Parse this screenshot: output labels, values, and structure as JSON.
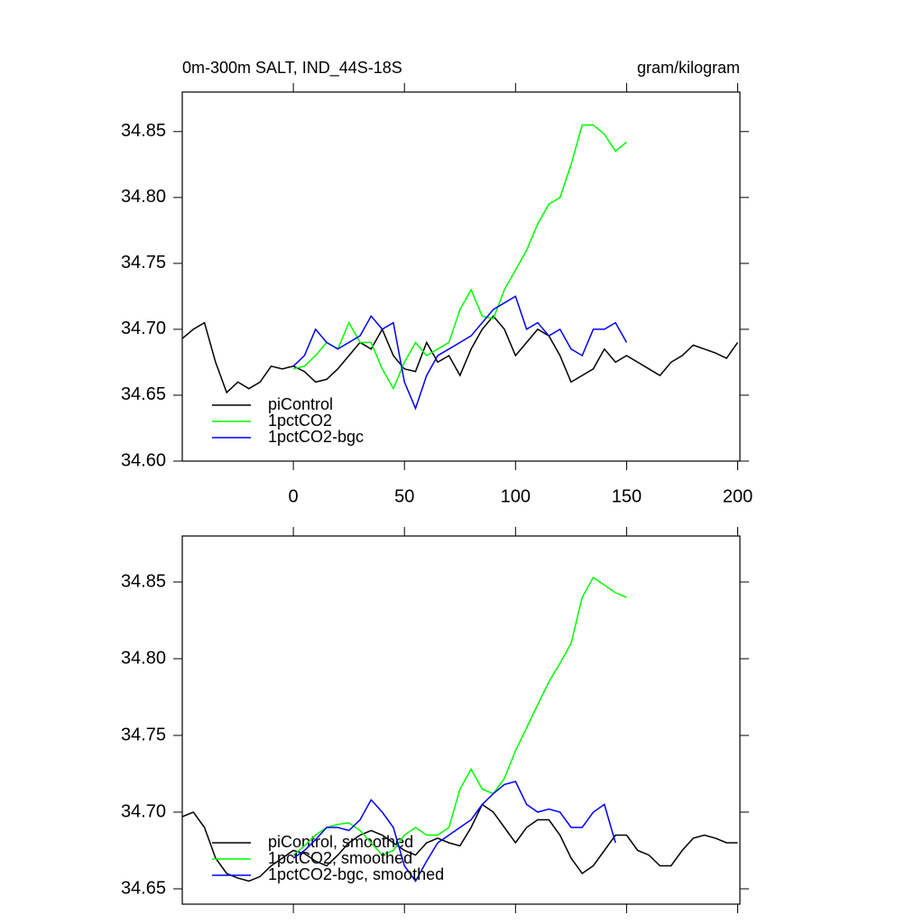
{
  "chart_data": [
    {
      "type": "line",
      "title": "0m-300m SALT, IND_44S-18S",
      "subtitle": "gram/kilogram",
      "x": [
        -50,
        -45,
        -40,
        -35,
        -30,
        -25,
        -20,
        -15,
        -10,
        -5,
        0,
        5,
        10,
        15,
        20,
        25,
        30,
        35,
        40,
        45,
        50,
        55,
        60,
        65,
        70,
        75,
        80,
        85,
        90,
        95,
        100,
        105,
        110,
        115,
        120,
        125,
        130,
        135,
        140,
        145,
        150,
        155,
        160,
        165,
        170,
        175,
        180,
        185,
        190,
        195,
        200
      ],
      "series": [
        {
          "name": "piControl",
          "color": "#000000",
          "values": [
            34.693,
            34.7,
            34.705,
            34.675,
            34.652,
            34.66,
            34.655,
            34.66,
            34.672,
            34.67,
            34.672,
            34.668,
            34.66,
            34.662,
            34.67,
            34.68,
            34.69,
            34.685,
            34.7,
            34.68,
            34.67,
            34.668,
            34.69,
            34.675,
            34.68,
            34.665,
            34.685,
            34.7,
            34.71,
            34.7,
            34.68,
            34.69,
            34.7,
            34.695,
            34.68,
            34.66,
            34.665,
            34.67,
            34.685,
            34.675,
            34.68,
            34.675,
            34.67,
            34.665,
            34.675,
            34.68,
            34.688,
            34.685,
            34.682,
            34.678,
            34.69
          ]
        },
        {
          "name": "1pctCO2",
          "color": "#00ff00",
          "values": [
            null,
            null,
            null,
            null,
            null,
            null,
            null,
            null,
            null,
            null,
            34.67,
            34.672,
            34.68,
            34.69,
            34.685,
            34.705,
            34.69,
            34.69,
            34.67,
            34.655,
            34.675,
            34.69,
            34.68,
            34.685,
            34.69,
            34.715,
            34.73,
            34.71,
            34.708,
            34.73,
            34.745,
            34.76,
            34.78,
            34.795,
            34.8,
            34.825,
            34.855,
            34.855,
            34.848,
            34.835,
            34.842,
            null,
            null,
            null,
            null,
            null,
            null,
            null,
            null,
            null,
            null
          ]
        },
        {
          "name": "1pctCO2-bgc",
          "color": "#0000ff",
          "values": [
            null,
            null,
            null,
            null,
            null,
            null,
            null,
            null,
            null,
            null,
            34.672,
            34.68,
            34.7,
            34.69,
            34.685,
            34.69,
            34.695,
            34.71,
            34.7,
            34.705,
            34.66,
            34.64,
            34.665,
            34.68,
            34.685,
            34.69,
            34.695,
            34.705,
            34.715,
            34.72,
            34.725,
            34.7,
            34.705,
            34.695,
            34.7,
            34.685,
            34.68,
            34.7,
            34.7,
            34.705,
            34.69,
            null,
            null,
            null,
            null,
            null,
            null,
            null,
            null,
            null,
            null
          ]
        }
      ],
      "xlim": [
        -50,
        201
      ],
      "xticks": [
        0,
        50,
        100,
        150,
        200
      ],
      "ylim": [
        34.6,
        34.88
      ],
      "yticks": [
        {
          "value": 34.6,
          "label": "34.60"
        },
        34.65,
        {
          "value": 34.7,
          "label": "34.70"
        },
        34.75,
        {
          "value": 34.8,
          "label": "34.80"
        },
        34.85
      ],
      "legend": "lower left"
    },
    {
      "type": "line",
      "x": [
        -50,
        -45,
        -40,
        -35,
        -30,
        -25,
        -20,
        -15,
        -10,
        -5,
        0,
        5,
        10,
        15,
        20,
        25,
        30,
        35,
        40,
        45,
        50,
        55,
        60,
        65,
        70,
        75,
        80,
        85,
        90,
        95,
        100,
        105,
        110,
        115,
        120,
        125,
        130,
        135,
        140,
        145,
        150,
        155,
        160,
        165,
        170,
        175,
        180,
        185,
        190,
        195,
        200
      ],
      "series": [
        {
          "name": "piControl, smoothed",
          "color": "#000000",
          "values": [
            34.697,
            34.7,
            34.69,
            34.67,
            34.66,
            34.657,
            34.655,
            34.658,
            34.665,
            34.67,
            34.675,
            34.673,
            34.668,
            34.665,
            34.672,
            34.68,
            34.685,
            34.688,
            34.685,
            34.68,
            34.675,
            34.672,
            34.68,
            34.683,
            34.68,
            34.678,
            34.69,
            34.705,
            34.7,
            34.69,
            34.68,
            34.69,
            34.695,
            34.695,
            34.685,
            34.67,
            34.66,
            34.665,
            34.675,
            34.685,
            34.685,
            34.675,
            34.672,
            34.665,
            34.665,
            34.675,
            34.683,
            34.685,
            34.683,
            34.68,
            34.68
          ]
        },
        {
          "name": "1pctCO2, smoothed",
          "color": "#00ff00",
          "values": [
            null,
            null,
            null,
            null,
            null,
            null,
            null,
            null,
            null,
            null,
            34.672,
            34.678,
            34.685,
            34.69,
            34.692,
            34.693,
            34.688,
            34.68,
            34.672,
            34.675,
            34.685,
            34.69,
            34.685,
            34.685,
            34.69,
            34.715,
            34.728,
            34.715,
            34.712,
            34.722,
            34.74,
            34.755,
            34.77,
            34.785,
            34.797,
            34.81,
            34.84,
            34.853,
            34.848,
            34.843,
            34.84,
            null,
            null,
            null,
            null,
            null,
            null,
            null,
            null,
            null,
            null
          ]
        },
        {
          "name": "1pctCO2-bgc, smoothed",
          "color": "#0000ff",
          "values": [
            null,
            null,
            null,
            null,
            null,
            null,
            null,
            null,
            null,
            null,
            34.67,
            34.675,
            34.682,
            34.69,
            34.69,
            34.688,
            34.695,
            34.708,
            34.7,
            34.69,
            34.665,
            34.655,
            34.668,
            34.68,
            34.685,
            34.69,
            34.695,
            34.705,
            34.712,
            34.718,
            34.72,
            34.705,
            34.7,
            34.702,
            34.7,
            34.69,
            34.69,
            34.7,
            34.705,
            34.68,
            null,
            null,
            null,
            null,
            null,
            null,
            null,
            null,
            null,
            null,
            null
          ]
        }
      ],
      "xlim": [
        -50,
        201
      ],
      "ylim": [
        34.64,
        34.88
      ],
      "yticks": [
        34.65,
        {
          "value": 34.7,
          "label": "34.70"
        },
        34.75,
        {
          "value": 34.8,
          "label": "34.80"
        },
        34.85
      ],
      "legend": "lower left"
    }
  ]
}
